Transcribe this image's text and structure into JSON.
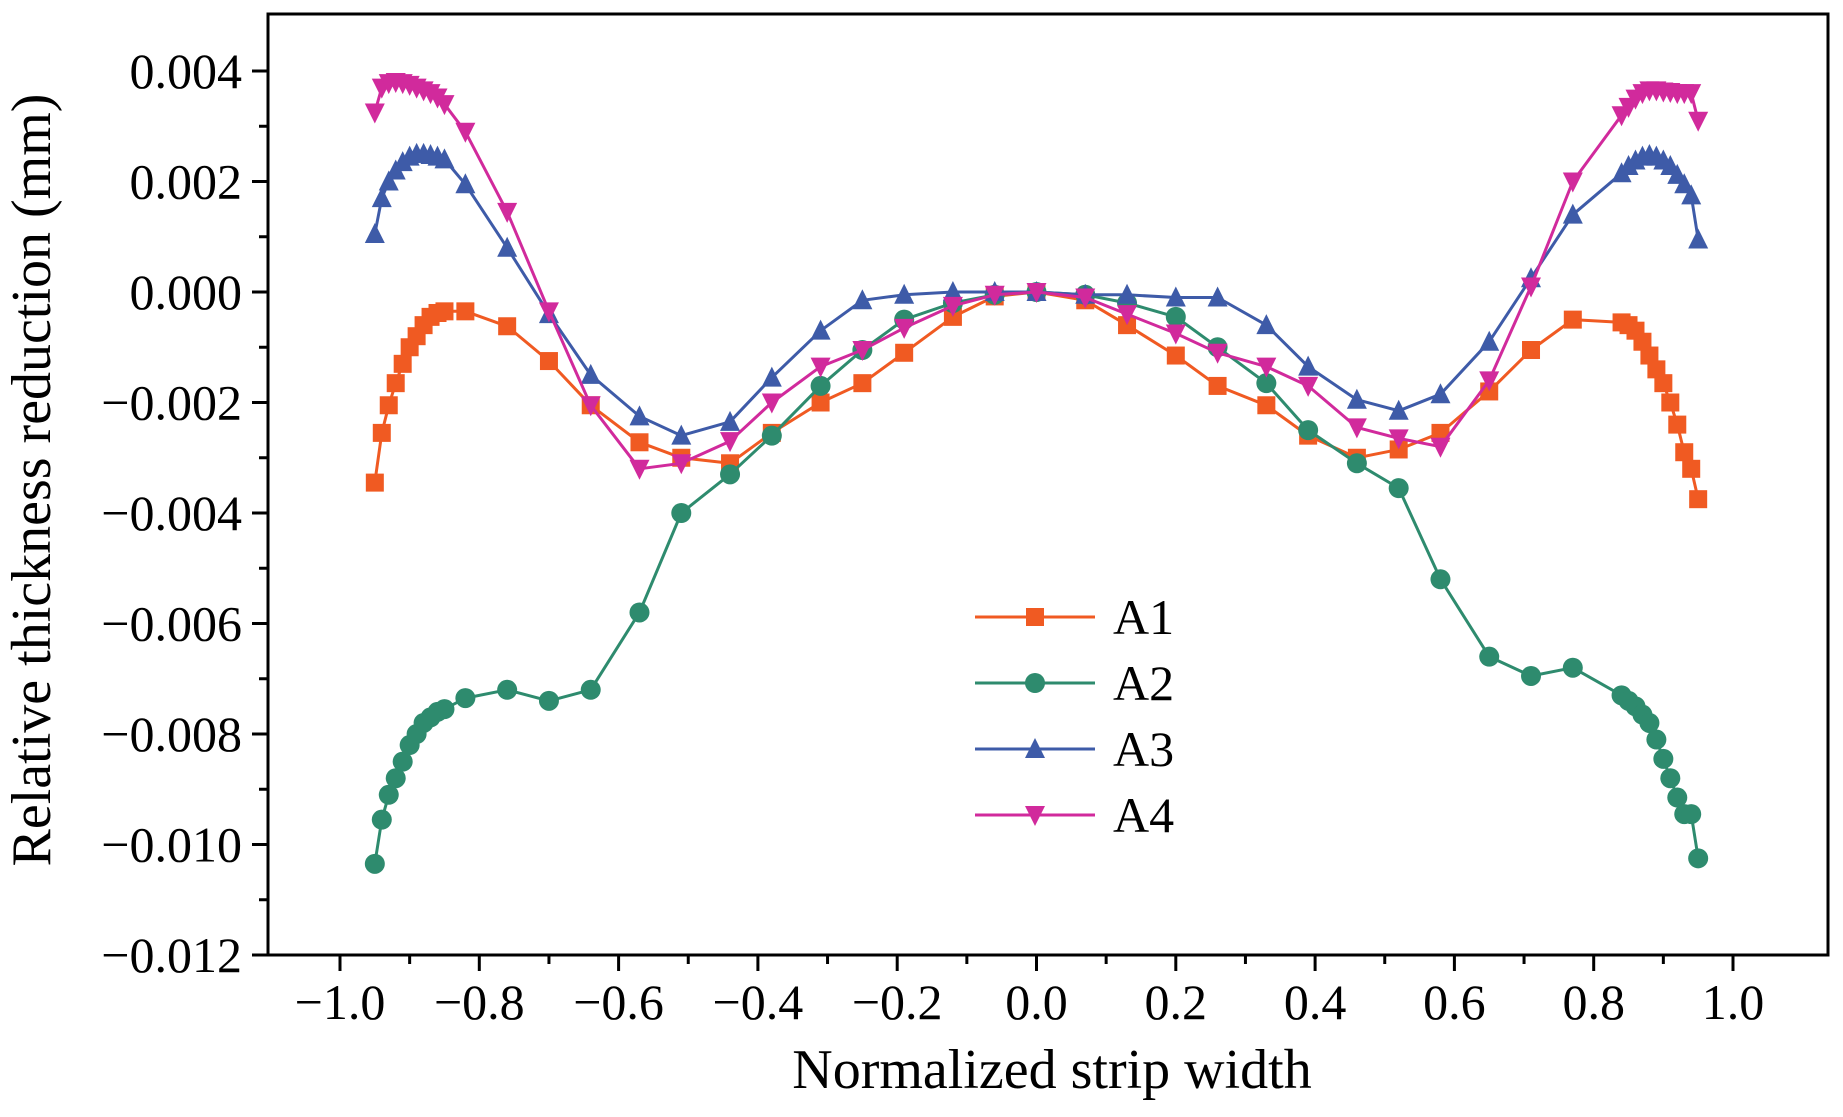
{
  "chart_data": {
    "type": "line",
    "xlabel": "Normalized strip width",
    "ylabel": "Relative thickness reduction (mm)",
    "xlim": [
      -1.1,
      1.1
    ],
    "ylim": [
      -0.012,
      0.0045
    ],
    "xticks": [
      -1.0,
      -0.8,
      -0.6,
      -0.4,
      -0.2,
      0.0,
      0.2,
      0.4,
      0.6,
      0.8,
      1.0
    ],
    "xtick_labels": [
      "−1.0",
      "−0.8",
      "−0.6",
      "−0.4",
      "−0.2",
      "0.0",
      "0.2",
      "0.4",
      "0.6",
      "0.8",
      "1.0"
    ],
    "yticks": [
      0.004,
      0.002,
      0.0,
      -0.002,
      -0.004,
      -0.006,
      -0.008,
      -0.01,
      -0.012
    ],
    "ytick_labels": [
      "0.004",
      "0.002",
      "0.000",
      "−0.002",
      "−0.004",
      "−0.006",
      "−0.008",
      "−0.010",
      "−0.012"
    ],
    "legend_position": "center-left",
    "grid": false,
    "series": [
      {
        "name": "A1",
        "color": "#F05A22",
        "marker": "square",
        "x": [
          -0.95,
          -0.94,
          -0.93,
          -0.92,
          -0.91,
          -0.9,
          -0.89,
          -0.88,
          -0.87,
          -0.86,
          -0.85,
          -0.82,
          -0.76,
          -0.7,
          -0.64,
          -0.57,
          -0.51,
          -0.44,
          -0.38,
          -0.31,
          -0.25,
          -0.19,
          -0.12,
          -0.06,
          0.0,
          0.07,
          0.13,
          0.2,
          0.26,
          0.33,
          0.39,
          0.46,
          0.52,
          0.58,
          0.65,
          0.71,
          0.77,
          0.84,
          0.85,
          0.86,
          0.87,
          0.88,
          0.89,
          0.9,
          0.91,
          0.92,
          0.93,
          0.94,
          0.95
        ],
        "y": [
          -0.00345,
          -0.00255,
          -0.00205,
          -0.00165,
          -0.0013,
          -0.001,
          -0.0008,
          -0.0006,
          -0.00045,
          -0.00038,
          -0.00035,
          -0.00035,
          -0.00062,
          -0.00125,
          -0.00205,
          -0.00272,
          -0.003,
          -0.0031,
          -0.00255,
          -0.002,
          -0.00165,
          -0.0011,
          -0.00045,
          -8e-05,
          0.0,
          -0.00015,
          -0.0006,
          -0.00115,
          -0.0017,
          -0.00205,
          -0.0026,
          -0.003,
          -0.00285,
          -0.00255,
          -0.0018,
          -0.00105,
          -0.0005,
          -0.00055,
          -0.0006,
          -0.0007,
          -0.0009,
          -0.00115,
          -0.0014,
          -0.00165,
          -0.002,
          -0.0024,
          -0.0029,
          -0.0032,
          -0.00375
        ]
      },
      {
        "name": "A2",
        "color": "#2E8B6E",
        "marker": "circle",
        "x": [
          -0.95,
          -0.94,
          -0.93,
          -0.92,
          -0.91,
          -0.9,
          -0.89,
          -0.88,
          -0.87,
          -0.86,
          -0.85,
          -0.82,
          -0.76,
          -0.7,
          -0.64,
          -0.57,
          -0.51,
          -0.44,
          -0.38,
          -0.31,
          -0.25,
          -0.19,
          -0.12,
          -0.06,
          0.0,
          0.07,
          0.13,
          0.2,
          0.26,
          0.33,
          0.39,
          0.46,
          0.52,
          0.58,
          0.65,
          0.71,
          0.77,
          0.84,
          0.85,
          0.86,
          0.87,
          0.88,
          0.89,
          0.9,
          0.91,
          0.92,
          0.93,
          0.94,
          0.95
        ],
        "y": [
          -0.01035,
          -0.00955,
          -0.0091,
          -0.0088,
          -0.0085,
          -0.0082,
          -0.008,
          -0.0078,
          -0.0077,
          -0.0076,
          -0.00755,
          -0.00735,
          -0.0072,
          -0.0074,
          -0.0072,
          -0.0058,
          -0.004,
          -0.0033,
          -0.0026,
          -0.0017,
          -0.00105,
          -0.0005,
          -0.0002,
          -5e-05,
          0.0,
          -5e-05,
          -0.0002,
          -0.00045,
          -0.001,
          -0.00165,
          -0.0025,
          -0.0031,
          -0.00355,
          -0.0052,
          -0.0066,
          -0.00695,
          -0.0068,
          -0.0073,
          -0.0074,
          -0.0075,
          -0.00765,
          -0.0078,
          -0.0081,
          -0.00845,
          -0.0088,
          -0.00915,
          -0.00945,
          -0.00945,
          -0.01025
        ]
      },
      {
        "name": "A3",
        "color": "#3E5BA8",
        "marker": "triangle-up",
        "x": [
          -0.95,
          -0.94,
          -0.93,
          -0.92,
          -0.91,
          -0.9,
          -0.89,
          -0.88,
          -0.87,
          -0.86,
          -0.85,
          -0.82,
          -0.76,
          -0.7,
          -0.64,
          -0.57,
          -0.51,
          -0.44,
          -0.38,
          -0.31,
          -0.25,
          -0.19,
          -0.12,
          -0.06,
          0.0,
          0.07,
          0.13,
          0.2,
          0.26,
          0.33,
          0.39,
          0.46,
          0.52,
          0.58,
          0.65,
          0.71,
          0.77,
          0.84,
          0.85,
          0.86,
          0.87,
          0.88,
          0.89,
          0.9,
          0.91,
          0.92,
          0.93,
          0.94,
          0.95
        ],
        "y": [
          0.00105,
          0.0017,
          0.002,
          0.0022,
          0.00235,
          0.00245,
          0.0025,
          0.0025,
          0.00248,
          0.00245,
          0.0024,
          0.00195,
          0.0008,
          -0.0004,
          -0.0015,
          -0.00225,
          -0.0026,
          -0.00235,
          -0.00155,
          -0.0007,
          -0.00015,
          -5e-05,
          0.0,
          0.0,
          0.0,
          -5e-05,
          -5e-05,
          -0.0001,
          -0.0001,
          -0.0006,
          -0.00135,
          -0.00195,
          -0.00215,
          -0.00185,
          -0.0009,
          0.00025,
          0.0014,
          0.00215,
          0.00228,
          0.00238,
          0.00245,
          0.00248,
          0.00245,
          0.00238,
          0.00228,
          0.00212,
          0.00195,
          0.00175,
          0.00095
        ]
      },
      {
        "name": "A4",
        "color": "#D12A9C",
        "marker": "triangle-down",
        "x": [
          -0.95,
          -0.94,
          -0.93,
          -0.92,
          -0.91,
          -0.9,
          -0.89,
          -0.88,
          -0.87,
          -0.86,
          -0.85,
          -0.82,
          -0.76,
          -0.7,
          -0.64,
          -0.57,
          -0.51,
          -0.44,
          -0.38,
          -0.31,
          -0.25,
          -0.19,
          -0.12,
          -0.06,
          0.0,
          0.07,
          0.13,
          0.2,
          0.26,
          0.33,
          0.39,
          0.46,
          0.52,
          0.58,
          0.65,
          0.71,
          0.77,
          0.84,
          0.85,
          0.86,
          0.87,
          0.88,
          0.89,
          0.9,
          0.91,
          0.92,
          0.93,
          0.94,
          0.95
        ],
        "y": [
          0.00325,
          0.0037,
          0.00378,
          0.0038,
          0.00378,
          0.00375,
          0.0037,
          0.00365,
          0.0036,
          0.00352,
          0.0034,
          0.0029,
          0.00145,
          -0.00035,
          -0.00205,
          -0.0032,
          -0.0031,
          -0.0027,
          -0.002,
          -0.00135,
          -0.00105,
          -0.00065,
          -0.00025,
          -5e-05,
          0.0,
          -0.0001,
          -0.0004,
          -0.00075,
          -0.0011,
          -0.00135,
          -0.0017,
          -0.00245,
          -0.00265,
          -0.0028,
          -0.0016,
          0.0001,
          0.002,
          0.0032,
          0.00335,
          0.0035,
          0.0036,
          0.00365,
          0.00365,
          0.00363,
          0.00362,
          0.0036,
          0.0036,
          0.0036,
          0.0031
        ]
      }
    ]
  }
}
